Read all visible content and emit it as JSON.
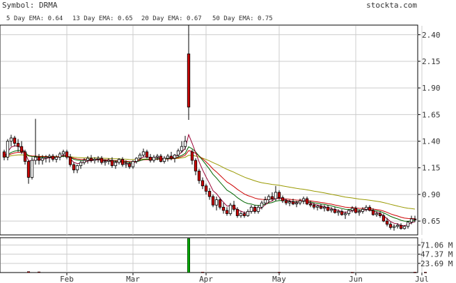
{
  "header": {
    "symbol_label": "Symbol: DRMA",
    "brand": "stockta.com"
  },
  "ema_legend": [
    {
      "text": "5 Day EMA: 0.64",
      "color": "#990033"
    },
    {
      "text": "13 Day EMA: 0.65",
      "color": "#006600"
    },
    {
      "text": "20 Day EMA: 0.67",
      "color": "#cc0000"
    },
    {
      "text": "50 Day EMA: 0.75",
      "color": "#999900"
    }
  ],
  "colors": {
    "up_candle": "#ffffff",
    "down_candle": "#cc0000",
    "volume_bar": "#00aa00",
    "grid": "#cccccc",
    "axis": "#000000"
  },
  "chart_data": {
    "type": "candlestick",
    "price_ticks": [
      2.4,
      2.15,
      1.9,
      1.65,
      1.4,
      1.15,
      0.9,
      0.65
    ],
    "price_tick_labels": [
      "2.40",
      "2.15",
      "1.90",
      "1.65",
      "1.40",
      "1.15",
      "0.90",
      "0.65"
    ],
    "price_range": [
      0.52,
      2.49
    ],
    "volume_ticks": [
      71.06,
      47.37,
      23.69
    ],
    "volume_tick_labels": [
      "71.06 M",
      "47.37 M",
      "23.69 M"
    ],
    "volume_range": [
      0,
      90
    ],
    "x_labels": [
      {
        "label": "Feb",
        "index": 18
      },
      {
        "label": "Mar",
        "index": 37
      },
      {
        "label": "Apr",
        "index": 58
      },
      {
        "label": "May",
        "index": 79
      },
      {
        "label": "Jun",
        "index": 101
      },
      {
        "label": "Jul",
        "index": 120
      }
    ],
    "ohlc": [
      [
        1.3,
        1.32,
        1.22,
        1.25
      ],
      [
        1.25,
        1.42,
        1.22,
        1.4
      ],
      [
        1.4,
        1.46,
        1.35,
        1.43
      ],
      [
        1.43,
        1.45,
        1.35,
        1.38
      ],
      [
        1.38,
        1.42,
        1.3,
        1.35
      ],
      [
        1.35,
        1.4,
        1.28,
        1.3
      ],
      [
        1.3,
        1.32,
        1.18,
        1.21
      ],
      [
        1.21,
        1.22,
        1.0,
        1.06
      ],
      [
        1.06,
        1.25,
        1.04,
        1.22
      ],
      [
        1.22,
        1.61,
        1.18,
        1.25
      ],
      [
        1.25,
        1.28,
        1.18,
        1.22
      ],
      [
        1.22,
        1.27,
        1.18,
        1.24
      ],
      [
        1.24,
        1.27,
        1.2,
        1.25
      ],
      [
        1.25,
        1.28,
        1.2,
        1.26
      ],
      [
        1.26,
        1.28,
        1.21,
        1.23
      ],
      [
        1.23,
        1.27,
        1.2,
        1.25
      ],
      [
        1.25,
        1.3,
        1.22,
        1.28
      ],
      [
        1.28,
        1.32,
        1.25,
        1.3
      ],
      [
        1.3,
        1.32,
        1.23,
        1.25
      ],
      [
        1.25,
        1.28,
        1.16,
        1.18
      ],
      [
        1.18,
        1.2,
        1.1,
        1.13
      ],
      [
        1.13,
        1.18,
        1.1,
        1.17
      ],
      [
        1.17,
        1.22,
        1.14,
        1.2
      ],
      [
        1.2,
        1.24,
        1.18,
        1.22
      ],
      [
        1.22,
        1.26,
        1.19,
        1.24
      ],
      [
        1.24,
        1.27,
        1.2,
        1.22
      ],
      [
        1.22,
        1.25,
        1.19,
        1.23
      ],
      [
        1.23,
        1.26,
        1.2,
        1.24
      ],
      [
        1.24,
        1.26,
        1.18,
        1.2
      ],
      [
        1.2,
        1.23,
        1.17,
        1.21
      ],
      [
        1.21,
        1.24,
        1.18,
        1.22
      ],
      [
        1.22,
        1.25,
        1.15,
        1.17
      ],
      [
        1.17,
        1.22,
        1.14,
        1.2
      ],
      [
        1.2,
        1.24,
        1.18,
        1.23
      ],
      [
        1.23,
        1.25,
        1.16,
        1.18
      ],
      [
        1.18,
        1.22,
        1.15,
        1.19
      ],
      [
        1.19,
        1.21,
        1.14,
        1.16
      ],
      [
        1.16,
        1.22,
        1.14,
        1.21
      ],
      [
        1.21,
        1.25,
        1.19,
        1.24
      ],
      [
        1.24,
        1.29,
        1.22,
        1.27
      ],
      [
        1.27,
        1.33,
        1.25,
        1.3
      ],
      [
        1.3,
        1.32,
        1.24,
        1.25
      ],
      [
        1.25,
        1.28,
        1.2,
        1.22
      ],
      [
        1.22,
        1.27,
        1.2,
        1.25
      ],
      [
        1.25,
        1.28,
        1.22,
        1.26
      ],
      [
        1.26,
        1.28,
        1.2,
        1.21
      ],
      [
        1.21,
        1.26,
        1.19,
        1.24
      ],
      [
        1.24,
        1.28,
        1.21,
        1.26
      ],
      [
        1.26,
        1.3,
        1.22,
        1.24
      ],
      [
        1.24,
        1.28,
        1.2,
        1.27
      ],
      [
        1.27,
        1.33,
        1.25,
        1.31
      ],
      [
        1.31,
        1.4,
        1.29,
        1.35
      ],
      [
        1.35,
        1.45,
        1.32,
        1.4
      ],
      [
        2.22,
        2.49,
        1.6,
        1.72
      ],
      [
        1.3,
        1.32,
        1.18,
        1.22
      ],
      [
        1.22,
        1.24,
        1.08,
        1.12
      ],
      [
        1.12,
        1.14,
        1.0,
        1.03
      ],
      [
        1.03,
        1.06,
        0.95,
        0.98
      ],
      [
        0.98,
        1.0,
        0.9,
        0.93
      ],
      [
        0.93,
        0.96,
        0.85,
        0.88
      ],
      [
        0.88,
        0.9,
        0.78,
        0.8
      ],
      [
        0.8,
        0.88,
        0.75,
        0.85
      ],
      [
        0.85,
        0.87,
        0.76,
        0.78
      ],
      [
        0.78,
        0.82,
        0.72,
        0.75
      ],
      [
        0.75,
        0.78,
        0.7,
        0.72
      ],
      [
        0.72,
        0.82,
        0.7,
        0.8
      ],
      [
        0.8,
        0.84,
        0.74,
        0.76
      ],
      [
        0.76,
        0.78,
        0.68,
        0.7
      ],
      [
        0.7,
        0.74,
        0.68,
        0.72
      ],
      [
        0.72,
        0.74,
        0.68,
        0.7
      ],
      [
        0.7,
        0.76,
        0.69,
        0.74
      ],
      [
        0.74,
        0.8,
        0.72,
        0.78
      ],
      [
        0.78,
        0.8,
        0.72,
        0.74
      ],
      [
        0.74,
        0.8,
        0.72,
        0.78
      ],
      [
        0.78,
        0.84,
        0.76,
        0.82
      ],
      [
        0.82,
        0.88,
        0.8,
        0.85
      ],
      [
        0.85,
        0.9,
        0.82,
        0.88
      ],
      [
        0.88,
        0.92,
        0.84,
        0.86
      ],
      [
        0.86,
        0.98,
        0.84,
        0.92
      ],
      [
        0.92,
        0.94,
        0.85,
        0.87
      ],
      [
        0.87,
        0.89,
        0.82,
        0.84
      ],
      [
        0.84,
        0.86,
        0.8,
        0.82
      ],
      [
        0.82,
        0.85,
        0.79,
        0.83
      ],
      [
        0.83,
        0.86,
        0.8,
        0.81
      ],
      [
        0.81,
        0.84,
        0.78,
        0.82
      ],
      [
        0.82,
        0.86,
        0.8,
        0.84
      ],
      [
        0.84,
        0.88,
        0.81,
        0.86
      ],
      [
        0.86,
        0.88,
        0.8,
        0.81
      ],
      [
        0.81,
        0.84,
        0.78,
        0.8
      ],
      [
        0.8,
        0.82,
        0.76,
        0.78
      ],
      [
        0.78,
        0.8,
        0.75,
        0.79
      ],
      [
        0.79,
        0.81,
        0.76,
        0.77
      ],
      [
        0.77,
        0.8,
        0.74,
        0.78
      ],
      [
        0.78,
        0.8,
        0.74,
        0.75
      ],
      [
        0.75,
        0.78,
        0.73,
        0.76
      ],
      [
        0.76,
        0.78,
        0.72,
        0.73
      ],
      [
        0.73,
        0.76,
        0.7,
        0.74
      ],
      [
        0.74,
        0.76,
        0.7,
        0.71
      ],
      [
        0.71,
        0.74,
        0.67,
        0.72
      ],
      [
        0.72,
        0.76,
        0.7,
        0.75
      ],
      [
        0.75,
        0.79,
        0.73,
        0.77
      ],
      [
        0.77,
        0.79,
        0.72,
        0.73
      ],
      [
        0.73,
        0.76,
        0.7,
        0.74
      ],
      [
        0.74,
        0.78,
        0.72,
        0.76
      ],
      [
        0.76,
        0.8,
        0.74,
        0.78
      ],
      [
        0.78,
        0.8,
        0.74,
        0.75
      ],
      [
        0.75,
        0.77,
        0.7,
        0.71
      ],
      [
        0.71,
        0.74,
        0.69,
        0.72
      ],
      [
        0.72,
        0.74,
        0.68,
        0.7
      ],
      [
        0.7,
        0.72,
        0.64,
        0.65
      ],
      [
        0.65,
        0.68,
        0.6,
        0.62
      ],
      [
        0.62,
        0.64,
        0.57,
        0.59
      ],
      [
        0.59,
        0.62,
        0.56,
        0.6
      ],
      [
        0.6,
        0.63,
        0.58,
        0.61
      ],
      [
        0.61,
        0.63,
        0.57,
        0.58
      ],
      [
        0.58,
        0.61,
        0.57,
        0.6
      ],
      [
        0.6,
        0.65,
        0.58,
        0.64
      ],
      [
        0.64,
        0.7,
        0.62,
        0.67
      ],
      [
        0.67,
        0.7,
        0.64,
        0.66
      ]
    ],
    "volume": [
      {
        "index": 7,
        "value": 2.5
      },
      {
        "index": 10,
        "value": 1.8
      },
      {
        "index": 53,
        "value": 88.0
      },
      {
        "index": 57,
        "value": 1.2
      },
      {
        "index": 79,
        "value": 1.0
      },
      {
        "index": 100,
        "value": 0.9
      },
      {
        "index": 118,
        "value": 1.1
      },
      {
        "index": 121,
        "value": 1.0
      }
    ],
    "ema": [
      {
        "name": "5 Day EMA",
        "color": "#990033",
        "period": 5
      },
      {
        "name": "13 Day EMA",
        "color": "#006600",
        "period": 13
      },
      {
        "name": "20 Day EMA",
        "color": "#cc0000",
        "period": 20
      },
      {
        "name": "50 Day EMA",
        "color": "#999900",
        "period": 50
      }
    ]
  }
}
